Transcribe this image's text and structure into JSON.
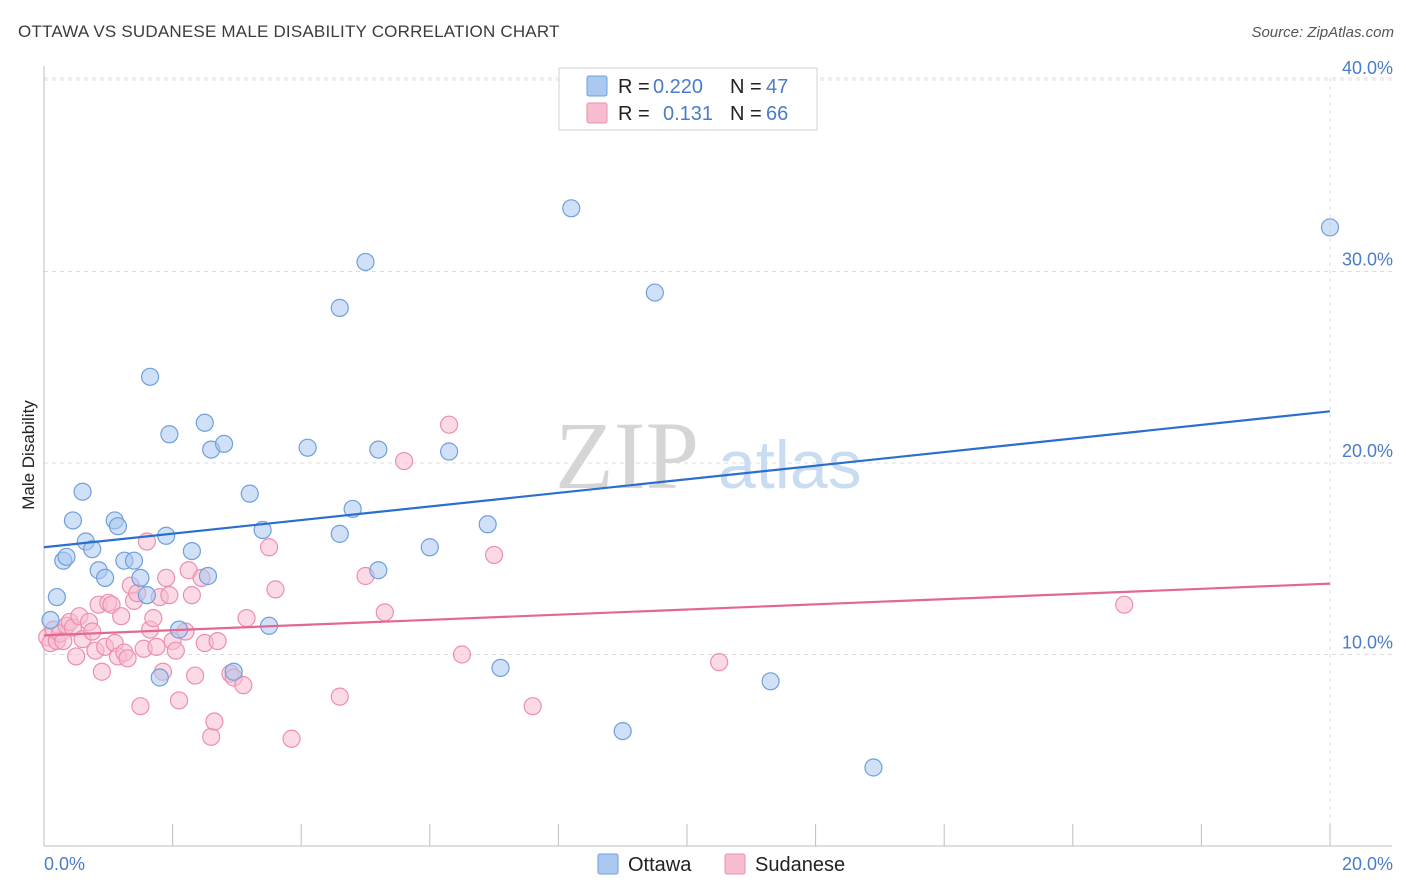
{
  "title": "OTTAWA VS SUDANESE MALE DISABILITY CORRELATION CHART",
  "source": "Source: ZipAtlas.com",
  "watermark": {
    "zip": "ZIP",
    "atlas": "atlas"
  },
  "colors": {
    "ottawa_fill": "#aac8f0",
    "ottawa_stroke": "#6f9fdc",
    "ottawa_line": "#2b6fcc",
    "sudanese_fill": "#f7bccf",
    "sudanese_stroke": "#ec8fae",
    "sudanese_line": "#e36890",
    "tick_label": "#4a7cc9",
    "grid": "#dcdcdc"
  },
  "stats_legend": [
    {
      "r_label": "R =",
      "r_value": "0.220",
      "n_label": "N =",
      "n_value": "47"
    },
    {
      "r_label": "R =",
      "r_value": "0.131",
      "n_label": "N =",
      "n_value": "66"
    }
  ],
  "chart_data": {
    "type": "scatter",
    "title": "OTTAWA VS SUDANESE MALE DISABILITY CORRELATION CHART",
    "xlabel": "",
    "ylabel": "Male Disability",
    "xlim": [
      0,
      20
    ],
    "ylim": [
      0,
      41
    ],
    "x_ticks": [
      {
        "value": 0,
        "label": "0.0%"
      },
      {
        "value": 20,
        "label": "20.0%"
      }
    ],
    "y_ticks": [
      {
        "value": 10,
        "label": "10.0%"
      },
      {
        "value": 20,
        "label": "20.0%"
      },
      {
        "value": 30,
        "label": "30.0%"
      },
      {
        "value": 40,
        "label": "40.0%"
      }
    ],
    "grid": "horizontal dashed",
    "legend_position": "bottom-center",
    "series": [
      {
        "name": "Ottawa",
        "trend": [
          [
            0,
            15.6
          ],
          [
            20,
            22.7
          ]
        ],
        "points": [
          [
            0.1,
            11.8
          ],
          [
            0.2,
            13.0
          ],
          [
            0.3,
            14.9
          ],
          [
            0.35,
            15.1
          ],
          [
            0.45,
            17.0
          ],
          [
            0.6,
            18.5
          ],
          [
            0.65,
            15.9
          ],
          [
            0.75,
            15.5
          ],
          [
            0.85,
            14.4
          ],
          [
            0.95,
            14.0
          ],
          [
            1.1,
            17.0
          ],
          [
            1.15,
            16.7
          ],
          [
            1.25,
            14.9
          ],
          [
            1.4,
            14.9
          ],
          [
            1.5,
            14.0
          ],
          [
            1.6,
            13.1
          ],
          [
            1.65,
            24.5
          ],
          [
            1.8,
            8.8
          ],
          [
            1.9,
            16.2
          ],
          [
            1.95,
            21.5
          ],
          [
            2.1,
            11.3
          ],
          [
            2.3,
            15.4
          ],
          [
            2.5,
            22.1
          ],
          [
            2.55,
            14.1
          ],
          [
            2.6,
            20.7
          ],
          [
            2.8,
            21.0
          ],
          [
            2.95,
            9.1
          ],
          [
            3.2,
            18.4
          ],
          [
            3.4,
            16.5
          ],
          [
            3.5,
            11.5
          ],
          [
            4.1,
            20.8
          ],
          [
            4.6,
            28.1
          ],
          [
            4.6,
            16.3
          ],
          [
            4.8,
            17.6
          ],
          [
            5.0,
            30.5
          ],
          [
            5.2,
            20.7
          ],
          [
            5.2,
            14.4
          ],
          [
            6.0,
            15.6
          ],
          [
            6.3,
            20.6
          ],
          [
            6.9,
            16.8
          ],
          [
            7.1,
            9.3
          ],
          [
            8.2,
            33.3
          ],
          [
            9.0,
            6.0
          ],
          [
            9.5,
            28.9
          ],
          [
            11.3,
            8.6
          ],
          [
            12.9,
            4.1
          ],
          [
            20.0,
            32.3
          ]
        ]
      },
      {
        "name": "Sudanese",
        "trend": [
          [
            0,
            11.0
          ],
          [
            20,
            13.7
          ]
        ],
        "points": [
          [
            0.05,
            10.9
          ],
          [
            0.1,
            10.6
          ],
          [
            0.15,
            11.3
          ],
          [
            0.2,
            10.7
          ],
          [
            0.25,
            11.1
          ],
          [
            0.3,
            10.7
          ],
          [
            0.35,
            11.5
          ],
          [
            0.4,
            11.7
          ],
          [
            0.45,
            11.4
          ],
          [
            0.5,
            9.9
          ],
          [
            0.55,
            12.0
          ],
          [
            0.6,
            10.8
          ],
          [
            0.7,
            11.7
          ],
          [
            0.75,
            11.2
          ],
          [
            0.8,
            10.2
          ],
          [
            0.85,
            12.6
          ],
          [
            0.9,
            9.1
          ],
          [
            0.95,
            10.4
          ],
          [
            1.0,
            12.7
          ],
          [
            1.05,
            12.6
          ],
          [
            1.1,
            10.6
          ],
          [
            1.15,
            9.9
          ],
          [
            1.2,
            12.0
          ],
          [
            1.25,
            10.1
          ],
          [
            1.3,
            9.8
          ],
          [
            1.35,
            13.6
          ],
          [
            1.4,
            12.8
          ],
          [
            1.45,
            13.2
          ],
          [
            1.5,
            7.3
          ],
          [
            1.55,
            10.3
          ],
          [
            1.6,
            15.9
          ],
          [
            1.65,
            11.3
          ],
          [
            1.7,
            11.9
          ],
          [
            1.75,
            10.4
          ],
          [
            1.8,
            13.0
          ],
          [
            1.85,
            9.1
          ],
          [
            1.9,
            14.0
          ],
          [
            1.95,
            13.1
          ],
          [
            2.0,
            10.7
          ],
          [
            2.05,
            10.2
          ],
          [
            2.1,
            7.6
          ],
          [
            2.2,
            11.2
          ],
          [
            2.25,
            14.4
          ],
          [
            2.3,
            13.1
          ],
          [
            2.35,
            8.9
          ],
          [
            2.45,
            14.0
          ],
          [
            2.5,
            10.6
          ],
          [
            2.6,
            5.7
          ],
          [
            2.65,
            6.5
          ],
          [
            2.7,
            10.7
          ],
          [
            2.9,
            9.0
          ],
          [
            2.95,
            8.8
          ],
          [
            3.1,
            8.4
          ],
          [
            3.15,
            11.9
          ],
          [
            3.5,
            15.6
          ],
          [
            3.6,
            13.4
          ],
          [
            3.85,
            5.6
          ],
          [
            4.6,
            7.8
          ],
          [
            5.0,
            14.1
          ],
          [
            5.3,
            12.2
          ],
          [
            5.6,
            20.1
          ],
          [
            6.3,
            22.0
          ],
          [
            6.5,
            10.0
          ],
          [
            7.0,
            15.2
          ],
          [
            7.6,
            7.3
          ],
          [
            10.5,
            9.6
          ],
          [
            16.8,
            12.6
          ]
        ]
      }
    ]
  },
  "bottom_legend": [
    {
      "name": "Ottawa"
    },
    {
      "name": "Sudanese"
    }
  ]
}
